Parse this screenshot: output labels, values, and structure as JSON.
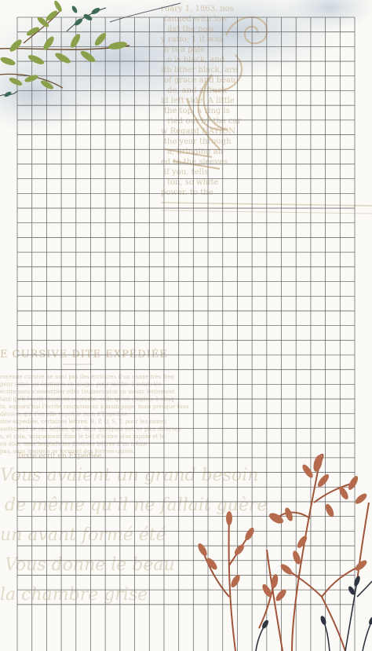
{
  "background": {
    "paper_color": "#fbfaf6",
    "grid_color": "#6f6f6f",
    "watercolor_color": "#c9d4de",
    "leaf_color": "#8aa04a",
    "twig_color": "#a0553a"
  },
  "grid": {
    "columns": 23,
    "rows": 40
  },
  "vintage_text_top": {
    "lines": [
      "ruary 1, 1863. nos",
      "fanned with low",
      "dat the now",
      "y ratio; 1 it was",
      "h is a pale",
      "o is black, and",
      "ith lither black, are",
      "of grace and beau",
      "de, and a frack",
      "id left side. A little",
      "the top, a ring is",
      "ried out by the car",
      "w Regard NATION",
      "the year through",
      "a, bringing an",
      "ed to the sleeves",
      "if you. tells",
      "ton, so white",
      "power. to the"
    ]
  },
  "vintage_text_mid": {
    "heading": "E CURSIVE DITE EXPÉDIÉE",
    "lines": [
      "royenne cursive ne sont pas des écritures d'un usage très fréq",
      "pour actes les écritures en usage, pour mettre à relais les",
      "écrite sans s'assembler elles toujours plus ou moins lentement",
      "tant qu'il l'écrit vraiment courante, celle qu'on emploie à chaq",
      "ts, aujourd'hui l'écrite couramment à main page, mais presque tous",
      "dévotes qui s'en elle reçoit le nom d'Expédiée.",
      "sive expédiée, certaines lettres: B, P, Q, S, T, pour les mineu",
      "ssolement de ces lettres, que dans quelques autres plus diverses",
      "s, et cela, uniquement dans le but d'écrire plus rapide et le",
      "en étés, sous lesquels les diverses lettres d'un même",
      "pas, sous lesquels se forment des formes-unités."
    ],
    "caption": "Texte écrit en Expédiée"
  },
  "script_lines": [
    "Vous avaient un grand besoin",
    "de même qu'il ne fallait guère",
    "un avant formé été",
    "Vous donne le beau",
    "la chambre grise"
  ]
}
